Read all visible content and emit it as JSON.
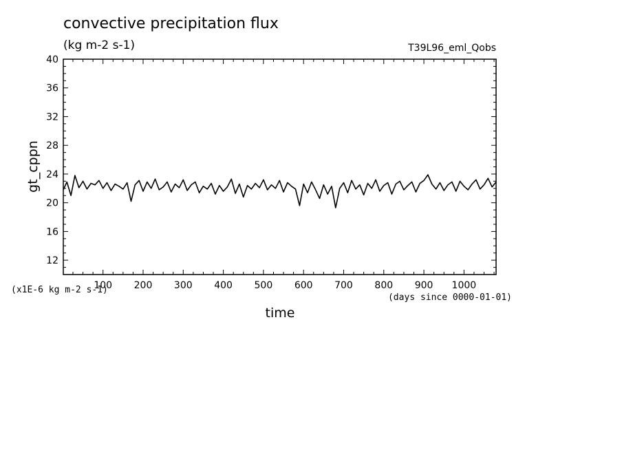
{
  "chart_data": {
    "type": "line",
    "title": "convective precipitation flux",
    "subtitle": "(kg m-2 s-1)",
    "run_label": "T39L96_eml_Qobs",
    "xlabel": "time",
    "ylabel": "gt_cppn",
    "x_units": "(days since 0000-01-01)",
    "y_scale_note": "(x1E-6 kg m-2 s-1)",
    "xlim": [
      1,
      1080
    ],
    "ylim": [
      10,
      40
    ],
    "x_ticks": [
      100,
      200,
      300,
      400,
      500,
      600,
      700,
      800,
      900,
      1000
    ],
    "y_ticks": [
      12,
      16,
      20,
      24,
      28,
      32,
      36,
      40
    ],
    "grid": false,
    "series": [
      {
        "x": [
          1,
          10,
          20,
          30,
          40,
          50,
          60,
          70,
          80,
          90,
          100,
          110,
          120,
          130,
          140,
          150,
          160,
          170,
          180,
          190,
          200,
          210,
          220,
          230,
          240,
          250,
          260,
          270,
          280,
          290,
          300,
          310,
          320,
          330,
          340,
          350,
          360,
          370,
          380,
          390,
          400,
          410,
          420,
          430,
          440,
          450,
          460,
          470,
          480,
          490,
          500,
          510,
          520,
          530,
          540,
          550,
          560,
          570,
          580,
          590,
          600,
          610,
          620,
          630,
          640,
          650,
          660,
          670,
          680,
          690,
          700,
          710,
          720,
          730,
          740,
          750,
          760,
          770,
          780,
          790,
          800,
          810,
          820,
          830,
          840,
          850,
          860,
          870,
          880,
          890,
          900,
          910,
          920,
          930,
          940,
          950,
          960,
          970,
          980,
          990,
          1000,
          1010,
          1020,
          1030,
          1040,
          1050,
          1060,
          1070,
          1080
        ],
        "values": [
          21.8,
          22.9,
          21.0,
          23.8,
          22.1,
          23.0,
          21.9,
          22.7,
          22.5,
          23.1,
          22.0,
          22.8,
          21.7,
          22.6,
          22.3,
          21.9,
          22.8,
          20.2,
          22.5,
          23.1,
          21.6,
          22.9,
          22.0,
          23.3,
          21.8,
          22.2,
          22.9,
          21.5,
          22.6,
          22.1,
          23.2,
          21.7,
          22.5,
          22.9,
          21.4,
          22.3,
          21.9,
          22.7,
          21.2,
          22.4,
          21.6,
          22.2,
          23.3,
          21.3,
          22.6,
          20.8,
          22.4,
          21.9,
          22.7,
          22.1,
          23.2,
          21.8,
          22.5,
          22.0,
          23.1,
          21.5,
          22.8,
          22.3,
          21.9,
          19.6,
          22.6,
          21.4,
          22.9,
          21.8,
          20.6,
          22.5,
          21.2,
          22.3,
          19.3,
          22.0,
          22.8,
          21.4,
          23.1,
          21.9,
          22.5,
          21.1,
          22.7,
          22.0,
          23.2,
          21.6,
          22.4,
          22.8,
          21.2,
          22.6,
          23.0,
          21.8,
          22.4,
          22.9,
          21.5,
          22.7,
          23.1,
          23.9,
          22.6,
          21.9,
          22.8,
          21.7,
          22.5,
          22.9,
          21.6,
          23.0,
          22.3,
          21.8,
          22.6,
          23.2,
          21.9,
          22.5,
          23.4,
          22.2,
          22.9
        ]
      }
    ]
  }
}
